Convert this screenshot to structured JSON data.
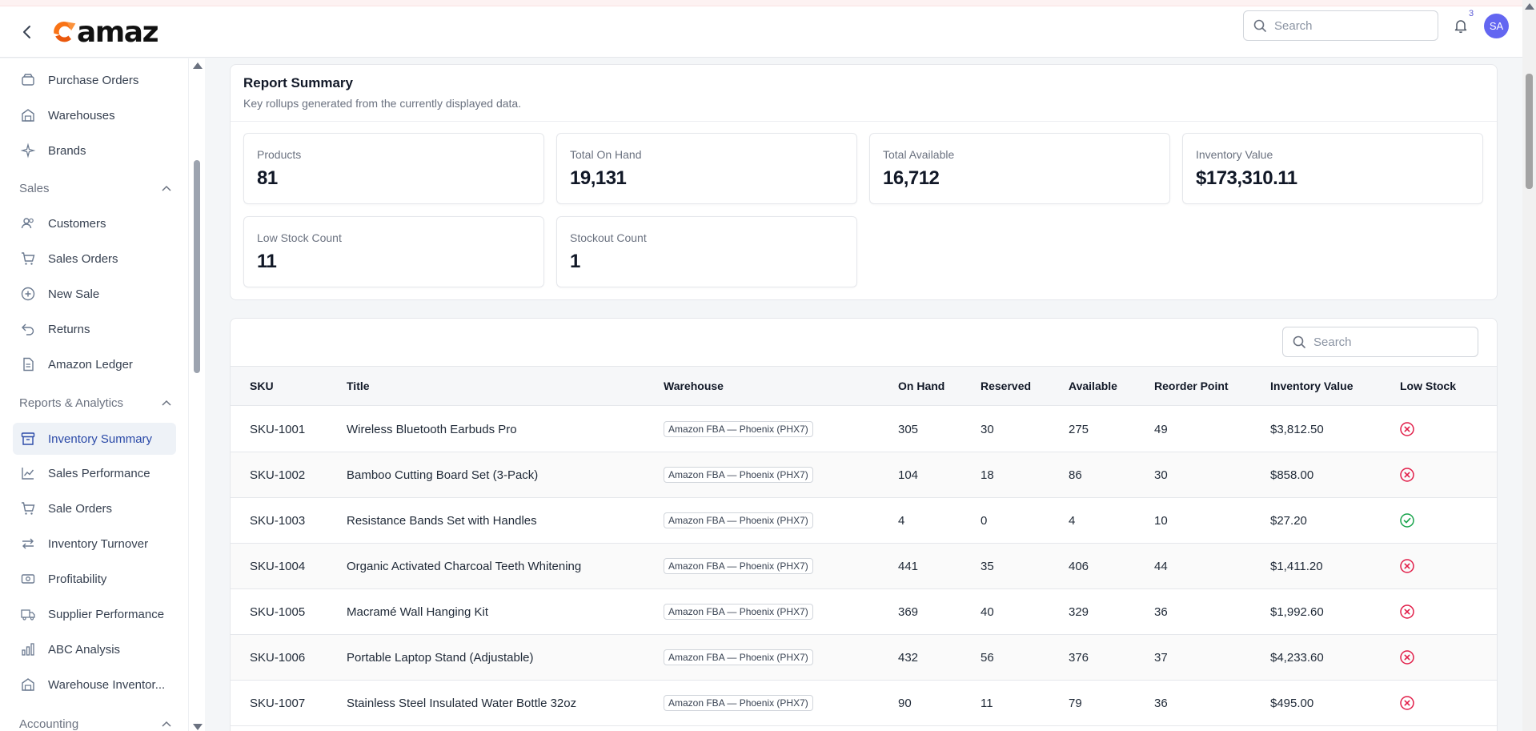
{
  "header": {
    "logo_text": "amaz",
    "search_placeholder": "Search",
    "notification_count": "3",
    "avatar_initials": "SA"
  },
  "sidebar": {
    "items_top": [
      {
        "label": "Purchase Orders",
        "icon": "box-icon"
      },
      {
        "label": "Warehouses",
        "icon": "warehouse-icon"
      },
      {
        "label": "Brands",
        "icon": "sparkles-icon"
      }
    ],
    "sales_section": "Sales",
    "sales_items": [
      {
        "label": "Customers",
        "icon": "users-icon"
      },
      {
        "label": "Sales Orders",
        "icon": "cart-icon"
      },
      {
        "label": "New Sale",
        "icon": "plus-circle-icon"
      },
      {
        "label": "Returns",
        "icon": "return-icon"
      },
      {
        "label": "Amazon Ledger",
        "icon": "document-icon"
      }
    ],
    "reports_section": "Reports & Analytics",
    "reports_items": [
      {
        "label": "Inventory Summary",
        "icon": "archive-icon",
        "active": true
      },
      {
        "label": "Sales Performance",
        "icon": "chart-line-icon"
      },
      {
        "label": "Sale Orders",
        "icon": "cart-icon"
      },
      {
        "label": "Inventory Turnover",
        "icon": "swap-icon"
      },
      {
        "label": "Profitability",
        "icon": "cash-icon"
      },
      {
        "label": "Supplier Performance",
        "icon": "truck-icon"
      },
      {
        "label": "ABC Analysis",
        "icon": "bar-chart-icon"
      },
      {
        "label": "Warehouse Inventor...",
        "icon": "warehouse-icon"
      }
    ],
    "accounting_section": "Accounting"
  },
  "summary": {
    "title": "Report Summary",
    "subtitle": "Key rollups generated from the currently displayed data.",
    "stats": [
      {
        "label": "Products",
        "value": "81"
      },
      {
        "label": "Total On Hand",
        "value": "19,131"
      },
      {
        "label": "Total Available",
        "value": "16,712"
      },
      {
        "label": "Inventory Value",
        "value": "$173,310.11"
      },
      {
        "label": "Low Stock Count",
        "value": "11"
      },
      {
        "label": "Stockout Count",
        "value": "1"
      }
    ]
  },
  "table": {
    "search_placeholder": "Search",
    "columns": [
      "SKU",
      "Title",
      "Warehouse",
      "On Hand",
      "Reserved",
      "Available",
      "Reorder Point",
      "Inventory Value",
      "Low Stock"
    ],
    "rows": [
      {
        "sku": "SKU-1001",
        "title": "Wireless Bluetooth Earbuds Pro",
        "warehouse": "Amazon FBA — Phoenix (PHX7)",
        "on_hand": "305",
        "reserved": "30",
        "available": "275",
        "reorder": "49",
        "value": "$3,812.50",
        "low_stock": false
      },
      {
        "sku": "SKU-1002",
        "title": "Bamboo Cutting Board Set (3-Pack)",
        "warehouse": "Amazon FBA — Phoenix (PHX7)",
        "on_hand": "104",
        "reserved": "18",
        "available": "86",
        "reorder": "30",
        "value": "$858.00",
        "low_stock": false
      },
      {
        "sku": "SKU-1003",
        "title": "Resistance Bands Set with Handles",
        "warehouse": "Amazon FBA — Phoenix (PHX7)",
        "on_hand": "4",
        "reserved": "0",
        "available": "4",
        "reorder": "10",
        "value": "$27.20",
        "low_stock": true
      },
      {
        "sku": "SKU-1004",
        "title": "Organic Activated Charcoal Teeth Whitening",
        "warehouse": "Amazon FBA — Phoenix (PHX7)",
        "on_hand": "441",
        "reserved": "35",
        "available": "406",
        "reorder": "44",
        "value": "$1,411.20",
        "low_stock": false
      },
      {
        "sku": "SKU-1005",
        "title": "Macramé Wall Hanging Kit",
        "warehouse": "Amazon FBA — Phoenix (PHX7)",
        "on_hand": "369",
        "reserved": "40",
        "available": "329",
        "reorder": "36",
        "value": "$1,992.60",
        "low_stock": false
      },
      {
        "sku": "SKU-1006",
        "title": "Portable Laptop Stand (Adjustable)",
        "warehouse": "Amazon FBA — Phoenix (PHX7)",
        "on_hand": "432",
        "reserved": "56",
        "available": "376",
        "reorder": "37",
        "value": "$4,233.60",
        "low_stock": false
      },
      {
        "sku": "SKU-1007",
        "title": "Stainless Steel Insulated Water Bottle 32oz",
        "warehouse": "Amazon FBA — Phoenix (PHX7)",
        "on_hand": "90",
        "reserved": "11",
        "available": "79",
        "reorder": "36",
        "value": "$495.00",
        "low_stock": false
      }
    ]
  },
  "colors": {
    "accent": "#2b4aa8",
    "avatar_bg": "#6366f1",
    "low_stock_no": "#e11d48",
    "low_stock_yes": "#16a34a"
  }
}
